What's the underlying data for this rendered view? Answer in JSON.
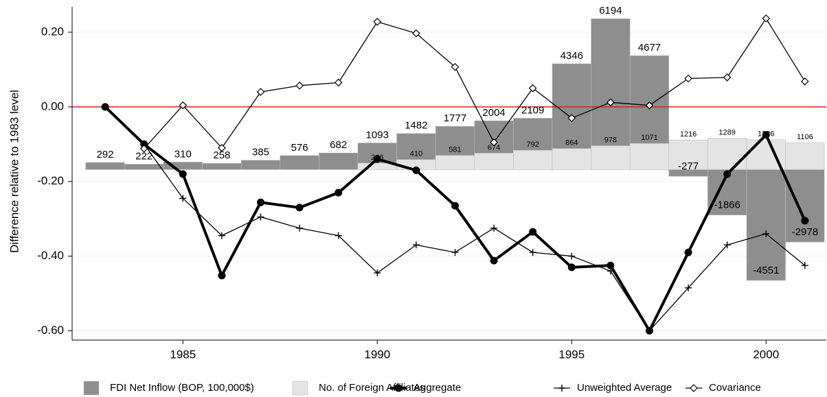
{
  "chart_data": {
    "type": "combo",
    "y_label": "Difference relative to 1983 level",
    "x": [
      1983,
      1984,
      1985,
      1986,
      1987,
      1988,
      1989,
      1990,
      1991,
      1992,
      1993,
      1994,
      1995,
      1996,
      1997,
      1998,
      1999,
      2000,
      2001
    ],
    "xlim": [
      1982.15,
      2001.55
    ],
    "xticks": [
      1985,
      1990,
      1995,
      2000
    ],
    "ylim": [
      -0.625,
      0.268
    ],
    "yticks": [
      {
        "value": 0.2,
        "label": "0.20"
      },
      {
        "value": 0,
        "label": "0.00"
      },
      {
        "value": -0.2,
        "label": "-0.20"
      },
      {
        "value": -0.4,
        "label": "-0.40"
      },
      {
        "value": -0.6,
        "label": "-0.60"
      }
    ],
    "y2lim": [
      -7000,
      6680
    ],
    "grid": true,
    "hline": {
      "value": 0,
      "color": "#e41a1c"
    },
    "legend": "bottom",
    "series": [
      {
        "name": "FDI Net Inflow (BOP, 100,000$)",
        "type": "bar",
        "axis": "y2",
        "color": "#8e8e8e",
        "values": [
          292,
          222,
          310,
          258,
          385,
          576,
          682,
          1093,
          1482,
          1777,
          2004,
          2109,
          4346,
          6194,
          4677,
          -277,
          -1866,
          -4551,
          -2978
        ]
      },
      {
        "name": "No. of Foreign Affiliates",
        "type": "bar",
        "axis": "y2",
        "color": "#e4e4e4",
        "values": [
          null,
          null,
          null,
          null,
          null,
          null,
          null,
          266,
          410,
          581,
          674,
          792,
          864,
          978,
          1071,
          1216,
          1289,
          1226,
          1106
        ]
      },
      {
        "name": "Aggregate",
        "type": "line",
        "marker": "circle",
        "color": "#000000",
        "values": [
          0,
          -0.1,
          -0.18,
          -0.452,
          -0.256,
          -0.27,
          -0.23,
          -0.14,
          -0.17,
          -0.265,
          -0.412,
          -0.335,
          -0.43,
          -0.425,
          -0.6,
          -0.39,
          -0.18,
          -0.075,
          -0.305
        ]
      },
      {
        "name": "Unweighted Average",
        "type": "line",
        "marker": "plus",
        "color": "#000000",
        "values": [
          0,
          -0.1,
          -0.245,
          -0.345,
          -0.295,
          -0.325,
          -0.345,
          -0.445,
          -0.37,
          -0.39,
          -0.325,
          -0.39,
          -0.4,
          -0.44,
          -0.6,
          -0.485,
          -0.37,
          -0.34,
          -0.425
        ]
      },
      {
        "name": "Covariance",
        "type": "line",
        "marker": "diamond",
        "color": "#000000",
        "values": [
          null,
          -0.112,
          0.004,
          -0.11,
          0.04,
          0.057,
          0.065,
          0.228,
          0.197,
          0.107,
          -0.095,
          0.05,
          -0.03,
          0.012,
          0.004,
          0.076,
          0.079,
          0.237,
          0.068
        ]
      }
    ]
  }
}
